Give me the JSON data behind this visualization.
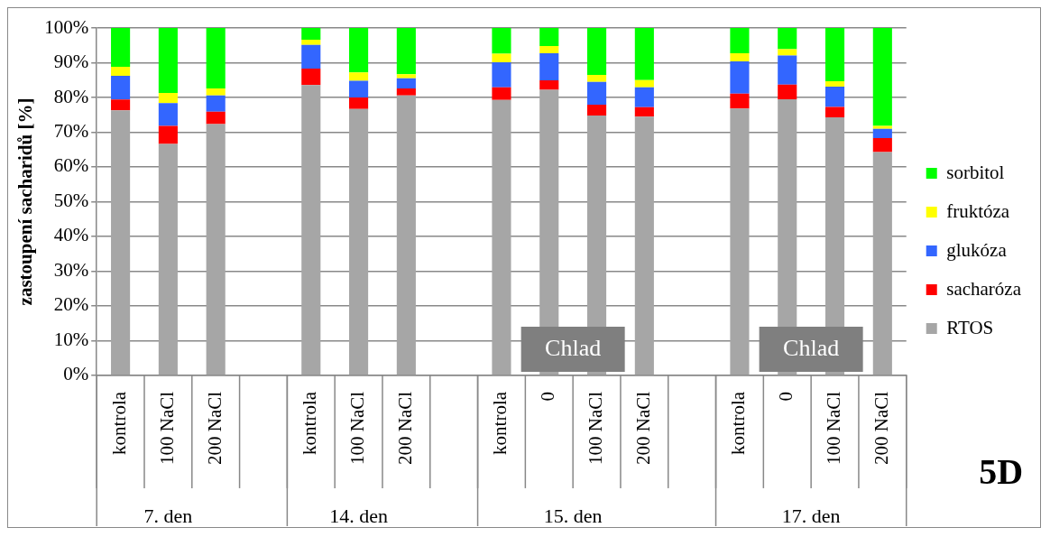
{
  "chart_data": {
    "type": "bar",
    "stacked": true,
    "ylabel": "zastoupení sacharidů [%]",
    "categories": [
      "kontrola",
      "100 NaCl",
      "200 NaCl",
      null,
      "kontrola",
      "100 NaCl",
      "200 NaCl",
      null,
      "kontrola",
      "0",
      "100 NaCl",
      "200 NaCl",
      null,
      "kontrola",
      "0",
      "100 NaCl",
      "200 NaCl"
    ],
    "series": [
      {
        "name": "RTOS",
        "color": "#a6a6a6",
        "values": [
          76.3,
          66.6,
          72.3,
          null,
          83.6,
          76.7,
          80.6,
          null,
          79.3,
          82.2,
          74.8,
          74.5,
          null,
          76.8,
          79.5,
          74.3,
          64.3
        ]
      },
      {
        "name": "sacharóza",
        "color": "#ff0000",
        "values": [
          3.1,
          5.2,
          3.6,
          null,
          4.7,
          3.3,
          2.0,
          null,
          3.6,
          2.7,
          3.1,
          2.7,
          null,
          4.3,
          4.2,
          3.0,
          4.0
        ]
      },
      {
        "name": "glukóza",
        "color": "#3366ff",
        "values": [
          6.8,
          6.6,
          4.7,
          null,
          6.8,
          4.8,
          2.9,
          null,
          7.2,
          7.8,
          6.6,
          5.7,
          null,
          9.3,
          8.4,
          5.8,
          2.7
        ]
      },
      {
        "name": "fruktóza",
        "color": "#ffff00",
        "values": [
          2.6,
          2.9,
          2.0,
          null,
          1.5,
          2.4,
          1.2,
          null,
          2.5,
          2.1,
          2.0,
          2.1,
          null,
          2.3,
          1.8,
          1.6,
          0.8
        ]
      },
      {
        "name": "sorbitol",
        "color": "#00ff00",
        "values": [
          11.2,
          18.7,
          17.4,
          null,
          3.4,
          12.8,
          13.3,
          null,
          7.4,
          5.2,
          13.5,
          15.0,
          null,
          7.3,
          6.1,
          15.3,
          28.2
        ]
      }
    ],
    "ylim": [
      0,
      100
    ],
    "yticks": [
      {
        "value": 0,
        "label": "0%"
      },
      {
        "value": 10,
        "label": "10%"
      },
      {
        "value": 20,
        "label": "20%"
      },
      {
        "value": 30,
        "label": "30%"
      },
      {
        "value": 40,
        "label": "40%"
      },
      {
        "value": 50,
        "label": "50%"
      },
      {
        "value": 60,
        "label": "60%"
      },
      {
        "value": 70,
        "label": "70%"
      },
      {
        "value": 80,
        "label": "80%"
      },
      {
        "value": 90,
        "label": "90%"
      },
      {
        "value": 100,
        "label": "100%"
      }
    ],
    "grid": "y",
    "legend": "right",
    "annotations": [
      "7. den",
      "14. den",
      "15. den",
      "17. den",
      "Chlad",
      "Chlad",
      "5D"
    ]
  }
}
